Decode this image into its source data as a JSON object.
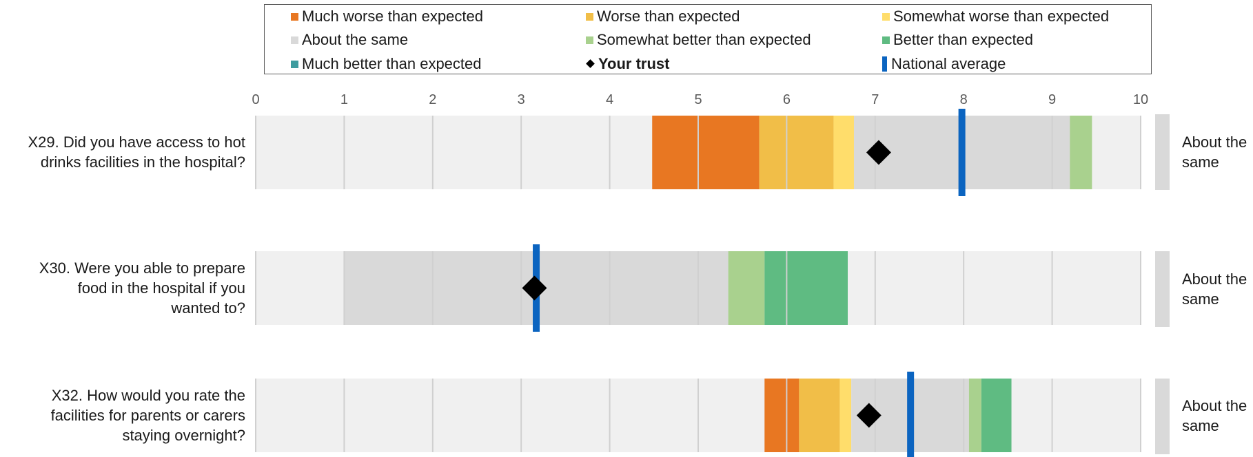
{
  "legend": {
    "items": [
      {
        "label": "Much worse than expected",
        "color": "#E87722",
        "kind": "swatch"
      },
      {
        "label": "Worse than expected",
        "color": "#F1BE48",
        "kind": "swatch"
      },
      {
        "label": "Somewhat worse than expected",
        "color": "#FFDD6B",
        "kind": "swatch"
      },
      {
        "label": "About the same",
        "color": "#D9D9D9",
        "kind": "swatch"
      },
      {
        "label": "Somewhat better than expected",
        "color": "#A9D18E",
        "kind": "swatch"
      },
      {
        "label": "Better than expected",
        "color": "#5FBB82",
        "kind": "swatch"
      },
      {
        "label": "Much better than expected",
        "color": "#3E9C9F",
        "kind": "swatch"
      },
      {
        "label": "Your trust",
        "color": "#000000",
        "kind": "diamond"
      },
      {
        "label": "National average",
        "color": "#0B64C0",
        "kind": "bar"
      }
    ]
  },
  "chart_data": {
    "type": "bar",
    "orientation": "horizontal-range",
    "xlim": [
      0,
      10
    ],
    "x_ticks": [
      "0",
      "1",
      "2",
      "3",
      "4",
      "5",
      "6",
      "7",
      "8",
      "9",
      "10"
    ],
    "grid": true,
    "legend_position": "top",
    "band_colors": {
      "much_worse": "#E87722",
      "worse": "#F1BE48",
      "somewhat_worse": "#FFDD6B",
      "about_same": "#D9D9D9",
      "somewhat_better": "#A9D18E",
      "better": "#5FBB82",
      "much_better": "#3E9C9F",
      "background": "#F0F0F0"
    },
    "questions": [
      {
        "label": "X29. Did you have access to hot drinks facilities in the hospital?",
        "label_lines": [
          "X29. Did you have access to hot",
          "drinks facilities in the hospital?"
        ],
        "bands": [
          {
            "category": "much_worse",
            "from": 4.48,
            "to": 5.69
          },
          {
            "category": "worse",
            "from": 5.69,
            "to": 6.53
          },
          {
            "category": "somewhat_worse",
            "from": 6.53,
            "to": 6.76
          },
          {
            "category": "about_same",
            "from": 6.76,
            "to": 9.2
          },
          {
            "category": "somewhat_better",
            "from": 9.2,
            "to": 9.45
          }
        ],
        "your_trust": 7.04,
        "national_average": 7.98,
        "status_lines": [
          "About the",
          "same"
        ]
      },
      {
        "label": "X30. Were you able to prepare food in the hospital if you wanted to?",
        "label_lines": [
          "X30. Were you able to prepare",
          "food in the hospital if you",
          "wanted to?"
        ],
        "bands": [
          {
            "category": "about_same",
            "from": 1.0,
            "to": 5.34
          },
          {
            "category": "somewhat_better",
            "from": 5.34,
            "to": 5.75
          },
          {
            "category": "better",
            "from": 5.75,
            "to": 6.69
          }
        ],
        "your_trust": 3.15,
        "national_average": 3.17,
        "status_lines": [
          "About the",
          "same"
        ]
      },
      {
        "label": "X32. How would you rate the facilities for parents or carers staying overnight?",
        "label_lines": [
          "X32. How would you rate the",
          "facilities for parents or carers",
          "staying overnight?"
        ],
        "bands": [
          {
            "category": "much_worse",
            "from": 5.75,
            "to": 6.14
          },
          {
            "category": "worse",
            "from": 6.14,
            "to": 6.6
          },
          {
            "category": "somewhat_worse",
            "from": 6.6,
            "to": 6.73
          },
          {
            "category": "about_same",
            "from": 6.73,
            "to": 8.06
          },
          {
            "category": "somewhat_better",
            "from": 8.06,
            "to": 8.2
          },
          {
            "category": "better",
            "from": 8.2,
            "to": 8.54
          }
        ],
        "your_trust": 6.93,
        "national_average": 7.4,
        "status_lines": [
          "About the",
          "same"
        ]
      }
    ]
  }
}
